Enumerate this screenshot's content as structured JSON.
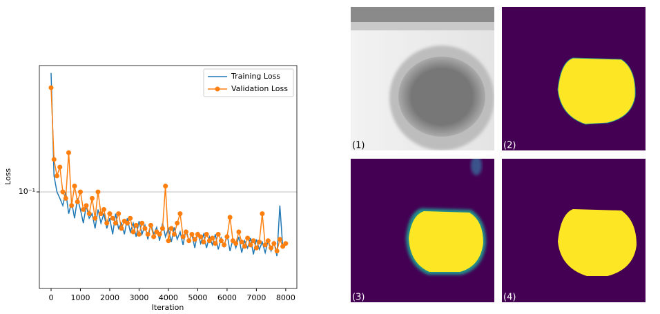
{
  "chart_data": {
    "type": "line",
    "xlabel": "Iteration",
    "ylabel": "Loss",
    "x": [
      0,
      100,
      200,
      300,
      400,
      500,
      600,
      700,
      800,
      900,
      1000,
      1100,
      1200,
      1300,
      1400,
      1500,
      1600,
      1700,
      1800,
      1900,
      2000,
      2100,
      2200,
      2300,
      2400,
      2500,
      2600,
      2700,
      2800,
      2900,
      3000,
      3100,
      3200,
      3300,
      3400,
      3500,
      3600,
      3700,
      3800,
      3900,
      4000,
      4100,
      4200,
      4300,
      4400,
      4500,
      4600,
      4700,
      4800,
      4900,
      5000,
      5100,
      5200,
      5300,
      5400,
      5500,
      5600,
      5700,
      5800,
      5900,
      6000,
      6100,
      6200,
      6300,
      6400,
      6500,
      6600,
      6700,
      6800,
      6900,
      7000,
      7100,
      7200,
      7300,
      7400,
      7500,
      7600,
      7700,
      7800,
      7900,
      8000
    ],
    "series": [
      {
        "name": "Training Loss",
        "color": "#1f77b4",
        "marker": false,
        "values": [
          0.7,
          0.13,
          0.1,
          0.09,
          0.08,
          0.1,
          0.07,
          0.085,
          0.065,
          0.09,
          0.075,
          0.06,
          0.08,
          0.065,
          0.07,
          0.055,
          0.075,
          0.06,
          0.07,
          0.055,
          0.065,
          0.05,
          0.07,
          0.055,
          0.06,
          0.05,
          0.065,
          0.052,
          0.06,
          0.048,
          0.062,
          0.05,
          0.058,
          0.046,
          0.06,
          0.05,
          0.056,
          0.045,
          0.06,
          0.048,
          0.055,
          0.044,
          0.056,
          0.046,
          0.052,
          0.042,
          0.054,
          0.045,
          0.05,
          0.04,
          0.052,
          0.043,
          0.05,
          0.04,
          0.048,
          0.042,
          0.05,
          0.039,
          0.047,
          0.041,
          0.05,
          0.038,
          0.046,
          0.04,
          0.048,
          0.037,
          0.045,
          0.04,
          0.047,
          0.036,
          0.046,
          0.039,
          0.044,
          0.037,
          0.045,
          0.038,
          0.044,
          0.035,
          0.08,
          0.04,
          0.042
        ]
      },
      {
        "name": "Validation Loss",
        "color": "#ff7f0e",
        "marker": true,
        "values": [
          0.55,
          0.17,
          0.13,
          0.15,
          0.1,
          0.09,
          0.19,
          0.08,
          0.11,
          0.085,
          0.1,
          0.075,
          0.08,
          0.07,
          0.09,
          0.065,
          0.1,
          0.07,
          0.075,
          0.06,
          0.07,
          0.065,
          0.06,
          0.07,
          0.055,
          0.062,
          0.06,
          0.065,
          0.052,
          0.058,
          0.05,
          0.06,
          0.055,
          0.05,
          0.058,
          0.048,
          0.052,
          0.05,
          0.055,
          0.11,
          0.045,
          0.055,
          0.05,
          0.06,
          0.07,
          0.048,
          0.052,
          0.045,
          0.05,
          0.046,
          0.05,
          0.048,
          0.044,
          0.05,
          0.045,
          0.047,
          0.043,
          0.05,
          0.045,
          0.042,
          0.048,
          0.066,
          0.045,
          0.043,
          0.052,
          0.044,
          0.041,
          0.047,
          0.042,
          0.045,
          0.04,
          0.044,
          0.07,
          0.042,
          0.045,
          0.04,
          0.043,
          0.038,
          0.046,
          0.041,
          0.043
        ]
      }
    ],
    "xlim": [
      -400,
      8380
    ],
    "xticks": [
      0,
      1000,
      2000,
      3000,
      4000,
      5000,
      6000,
      7000,
      8000
    ],
    "ylim": [
      0.0206,
      0.79
    ],
    "ylog": true,
    "yticks": [
      {
        "value": 0.1,
        "label": "10⁻¹"
      }
    ],
    "grid": true,
    "legend": "upper right"
  },
  "panels": [
    "(1)",
    "(2)",
    "(3)",
    "(4)"
  ]
}
